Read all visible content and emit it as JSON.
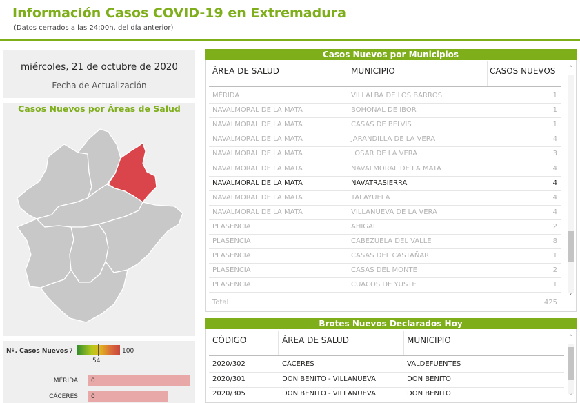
{
  "header": {
    "title": "Información Casos COVID-19 en Extremadura",
    "subtitle": "(Datos cerrados a las 24:00h. del día anterior)"
  },
  "date_card": {
    "value": "miércoles, 21 de octubre de 2020",
    "label": "Fecha de Actualización"
  },
  "map": {
    "title": "Casos Nuevos por Áreas de Salud",
    "highlight_area": "NAVALMORAL DE LA MATA",
    "region_color": "#c8c8c8",
    "highlight_color": "#d9454a"
  },
  "legend": {
    "label": "Nº. Casos Nuevos",
    "min": "7",
    "max": "100",
    "mid": "54",
    "bars": [
      {
        "name": "MÉRIDA",
        "value": "0",
        "fill": 1.0
      },
      {
        "name": "CÁCERES",
        "value": "0",
        "fill": 0.78
      }
    ]
  },
  "municipios": {
    "title": "Casos Nuevos por Municipios",
    "columns": [
      "ÁREA DE SALUD",
      "MUNICIPIO",
      "CASOS NUEVOS"
    ],
    "rows": [
      {
        "area": "MÉRIDA",
        "municipio": "VILLALBA DE LOS BARROS",
        "casos": "1"
      },
      {
        "area": "NAVALMORAL DE LA MATA",
        "municipio": "BOHONAL DE IBOR",
        "casos": "1"
      },
      {
        "area": "NAVALMORAL DE LA MATA",
        "municipio": "CASAS DE BELVIS",
        "casos": "1"
      },
      {
        "area": "NAVALMORAL DE LA MATA",
        "municipio": "JARANDILLA DE LA VERA",
        "casos": "4"
      },
      {
        "area": "NAVALMORAL DE LA MATA",
        "municipio": "LOSAR DE LA VERA",
        "casos": "3"
      },
      {
        "area": "NAVALMORAL DE LA MATA",
        "municipio": "NAVALMORAL DE LA MATA",
        "casos": "4"
      },
      {
        "area": "NAVALMORAL DE LA MATA",
        "municipio": "NAVATRASIERRA",
        "casos": "4"
      },
      {
        "area": "NAVALMORAL DE LA MATA",
        "municipio": "TALAYUELA",
        "casos": "4"
      },
      {
        "area": "NAVALMORAL DE LA MATA",
        "municipio": "VILLANUEVA DE LA VERA",
        "casos": "4"
      },
      {
        "area": "PLASENCIA",
        "municipio": "AHIGAL",
        "casos": "2"
      },
      {
        "area": "PLASENCIA",
        "municipio": "CABEZUELA DEL VALLE",
        "casos": "8"
      },
      {
        "area": "PLASENCIA",
        "municipio": "CASAS DEL CASTAÑAR",
        "casos": "1"
      },
      {
        "area": "PLASENCIA",
        "municipio": "CASAS DEL MONTE",
        "casos": "2"
      },
      {
        "area": "PLASENCIA",
        "municipio": "CUACOS DE YUSTE",
        "casos": "1"
      }
    ],
    "total_label": "Total",
    "total_value": "425",
    "scroll_up": "˄",
    "scroll_down": "˅"
  },
  "brotes": {
    "title": "Brotes Nuevos Declarados Hoy",
    "columns": [
      "CÓDIGO",
      "ÁREA DE SALUD",
      "MUNICIPIO"
    ],
    "rows": [
      {
        "codigo": "2020/302",
        "area": "CÁCERES",
        "municipio": "VALDEFUENTES"
      },
      {
        "codigo": "2020/301",
        "area": "DON BENITO - VILLANUEVA",
        "municipio": "DON BENITO"
      },
      {
        "codigo": "2020/305",
        "area": "DON BENITO - VILLANUEVA",
        "municipio": "DON BENITO"
      }
    ],
    "scroll_up": "˄",
    "scroll_down": "˅"
  }
}
